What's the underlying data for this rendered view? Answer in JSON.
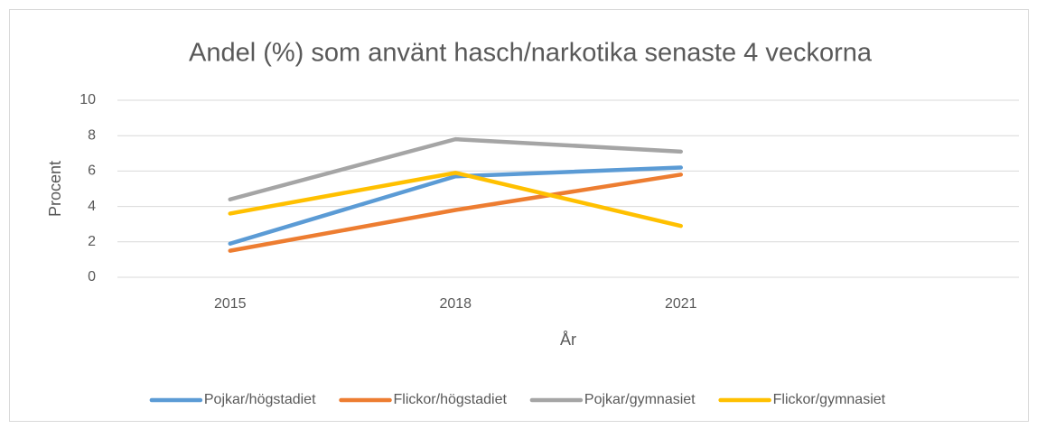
{
  "chart_data": {
    "type": "line",
    "title": "Andel (%) som använt hasch/narkotika senaste 4 veckorna",
    "x_label": "År",
    "y_label": "Procent",
    "categories": [
      "2015",
      "2018",
      "2021",
      null
    ],
    "series": [
      {
        "name": "Pojkar/högstadiet",
        "color": "#5b9bd5",
        "values": [
          1.9,
          5.7,
          6.2,
          null
        ]
      },
      {
        "name": "Flickor/högstadiet",
        "color": "#ed7d31",
        "values": [
          1.5,
          3.8,
          5.8,
          null
        ]
      },
      {
        "name": "Pojkar/gymnasiet",
        "color": "#a5a5a5",
        "values": [
          4.4,
          7.8,
          7.1,
          null
        ]
      },
      {
        "name": "Flickor/gymnasiet",
        "color": "#ffc000",
        "values": [
          3.6,
          5.9,
          2.9,
          null
        ]
      }
    ],
    "ylim": [
      0,
      10
    ],
    "yticks": [
      0,
      2,
      4,
      6,
      8,
      10
    ],
    "grid": true,
    "legend": "bottom"
  }
}
